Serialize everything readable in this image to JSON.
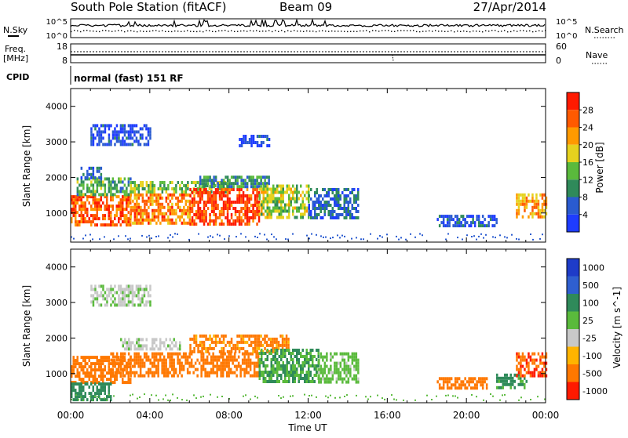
{
  "header": {
    "title": "South Pole Station (fitACF)",
    "beam": "Beam 09",
    "date": "27/Apr/2014"
  },
  "nsky_panel": {
    "left_label": "N.Sky",
    "right_label": "N.Search",
    "left_ticks": [
      "10^5",
      "10^0"
    ],
    "right_ticks": [
      "10^5",
      "10^0"
    ]
  },
  "freq_panel": {
    "left_label_1": "Freq.",
    "left_label_2": "[MHz]",
    "right_label": "Nave",
    "left_ticks": [
      "18",
      "8"
    ],
    "right_ticks": [
      "60",
      "0"
    ]
  },
  "cpid": {
    "label": "CPID",
    "mode": "normal (fast) 151 RF"
  },
  "colors": {
    "power_scale": [
      "#1e3cff",
      "#2a5bd0",
      "#2f8a5a",
      "#5aba3c",
      "#e6d21e",
      "#ff9a00",
      "#ff5a00",
      "#ff1a00"
    ],
    "velocity_scale": [
      "#1e3cc8",
      "#2f5fd0",
      "#2f8a5a",
      "#5aba3c",
      "#c8c8c8",
      "#ffb400",
      "#ff7800",
      "#ff1a00"
    ]
  },
  "chart_data": [
    {
      "type": "heatmap",
      "name": "power",
      "ylabel": "Slant Range [km]",
      "xlabel": "",
      "x_ticks": [
        "00:00",
        "04:00",
        "08:00",
        "12:00",
        "16:00",
        "20:00",
        "00:00"
      ],
      "xlim": [
        0,
        24
      ],
      "ylim": [
        180,
        4500
      ],
      "y_ticks": [
        1000,
        2000,
        3000,
        4000
      ],
      "colorbar_label": "Power [dB]",
      "colorbar_ticks": [
        4,
        8,
        12,
        16,
        20,
        24,
        28
      ],
      "colorbar_range": [
        0,
        32
      ],
      "regions": [
        {
          "t0": 0.0,
          "t1": 3.0,
          "r0": 700,
          "r1": 1500,
          "v": 26
        },
        {
          "t0": 0.3,
          "t1": 3.0,
          "r0": 1500,
          "r1": 2000,
          "v": 12
        },
        {
          "t0": 0.5,
          "t1": 1.5,
          "r0": 2000,
          "r1": 2300,
          "v": 6
        },
        {
          "t0": 3.0,
          "t1": 6.0,
          "r0": 750,
          "r1": 1550,
          "v": 24
        },
        {
          "t0": 3.0,
          "t1": 8.0,
          "r0": 1550,
          "r1": 1900,
          "v": 14
        },
        {
          "t0": 6.0,
          "t1": 9.5,
          "r0": 700,
          "r1": 1700,
          "v": 28
        },
        {
          "t0": 6.5,
          "t1": 10.0,
          "r0": 1700,
          "r1": 2050,
          "v": 10
        },
        {
          "t0": 9.5,
          "t1": 12.0,
          "r0": 900,
          "r1": 1800,
          "v": 16
        },
        {
          "t0": 12.0,
          "t1": 14.5,
          "r0": 900,
          "r1": 1700,
          "v": 7
        },
        {
          "t0": 18.5,
          "t1": 21.5,
          "r0": 600,
          "r1": 950,
          "v": 5
        },
        {
          "t0": 22.5,
          "t1": 24.0,
          "r0": 900,
          "r1": 1550,
          "v": 22
        },
        {
          "t0": 1.0,
          "t1": 4.0,
          "r0": 2900,
          "r1": 3500,
          "v": 4
        },
        {
          "t0": 8.5,
          "t1": 10.0,
          "r0": 2900,
          "r1": 3200,
          "v": 4
        }
      ]
    },
    {
      "type": "heatmap",
      "name": "velocity",
      "ylabel": "Slant Range [km]",
      "xlabel": "Time UT",
      "x_ticks": [
        "00:00",
        "04:00",
        "08:00",
        "12:00",
        "16:00",
        "20:00",
        "00:00"
      ],
      "xlim": [
        0,
        24
      ],
      "ylim": [
        180,
        4500
      ],
      "y_ticks": [
        1000,
        2000,
        3000,
        4000
      ],
      "colorbar_label": "Velocity [m s^-1]",
      "colorbar_ticks": [
        "1000",
        "500",
        "100",
        "25",
        "-25",
        "-100",
        "-500",
        "-1000"
      ],
      "regions": [
        {
          "t0": 0.0,
          "t1": 3.0,
          "r0": 750,
          "r1": 1500,
          "v": -300
        },
        {
          "t0": 0.0,
          "t1": 2.0,
          "r0": 300,
          "r1": 750,
          "v": 200
        },
        {
          "t0": 2.0,
          "t1": 9.5,
          "r0": 900,
          "r1": 1600,
          "v": -200
        },
        {
          "t0": 2.5,
          "t1": 5.5,
          "r0": 1700,
          "r1": 2000,
          "v": 10
        },
        {
          "t0": 6.0,
          "t1": 11.0,
          "r0": 1600,
          "r1": 2100,
          "v": -150
        },
        {
          "t0": 9.5,
          "t1": 12.5,
          "r0": 800,
          "r1": 1700,
          "v": 100
        },
        {
          "t0": 12.5,
          "t1": 14.5,
          "r0": 800,
          "r1": 1600,
          "v": 50
        },
        {
          "t0": 18.5,
          "t1": 21.0,
          "r0": 600,
          "r1": 900,
          "v": -250
        },
        {
          "t0": 21.5,
          "t1": 23.0,
          "r0": 600,
          "r1": 1000,
          "v": 150
        },
        {
          "t0": 22.5,
          "t1": 24.0,
          "r0": 900,
          "r1": 1600,
          "v": -450
        },
        {
          "t0": 1.0,
          "t1": 4.0,
          "r0": 2900,
          "r1": 3500,
          "v": 10
        }
      ]
    }
  ],
  "xlabel_bottom": "Time UT"
}
